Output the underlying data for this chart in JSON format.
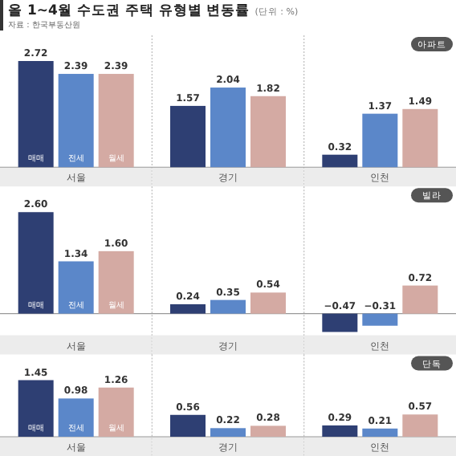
{
  "chart_data": [
    {
      "type": "bar",
      "title": "아파트",
      "annotations": [
        "올 1~4월 수도권 주택 유형별 변동률",
        "(단위 : %)",
        "자료 : 한국부동산원"
      ],
      "categories": [
        "서울",
        "경기",
        "인천"
      ],
      "series": [
        {
          "name": "매매",
          "color": "#2e3f73",
          "values": [
            2.72,
            1.57,
            0.32
          ],
          "value_labels": [
            "2.72",
            "1.57",
            "0.32"
          ]
        },
        {
          "name": "전세",
          "color": "#5b87c9",
          "values": [
            2.39,
            2.04,
            1.37
          ],
          "value_labels": [
            "2.39",
            "2.04",
            "1.37"
          ]
        },
        {
          "name": "월세",
          "color": "#d4aaa3",
          "values": [
            2.39,
            1.82,
            1.49
          ],
          "value_labels": [
            "2.39",
            "1.82",
            "1.49"
          ]
        }
      ]
    },
    {
      "type": "bar",
      "title": "빌라",
      "categories": [
        "서울",
        "경기",
        "인천"
      ],
      "series": [
        {
          "name": "매매",
          "color": "#2e3f73",
          "values": [
            2.6,
            0.24,
            -0.47
          ],
          "value_labels": [
            "2.60",
            "0.24",
            "−0.47"
          ]
        },
        {
          "name": "전세",
          "color": "#5b87c9",
          "values": [
            1.34,
            0.35,
            -0.31
          ],
          "value_labels": [
            "1.34",
            "0.35",
            "−0.31"
          ]
        },
        {
          "name": "월세",
          "color": "#d4aaa3",
          "values": [
            1.6,
            0.54,
            0.72
          ],
          "value_labels": [
            "1.60",
            "0.54",
            "0.72"
          ]
        }
      ]
    },
    {
      "type": "bar",
      "title": "단독",
      "categories": [
        "서울",
        "경기",
        "인천"
      ],
      "series": [
        {
          "name": "매매",
          "color": "#2e3f73",
          "values": [
            1.45,
            0.56,
            0.29
          ],
          "value_labels": [
            "1.45",
            "0.56",
            "0.29"
          ]
        },
        {
          "name": "전세",
          "color": "#5b87c9",
          "values": [
            0.98,
            0.22,
            0.21
          ],
          "value_labels": [
            "0.98",
            "0.22",
            "0.21"
          ]
        },
        {
          "name": "월세",
          "color": "#d4aaa3",
          "values": [
            1.26,
            0.28,
            0.57
          ],
          "value_labels": [
            "1.26",
            "0.28",
            "0.57"
          ]
        }
      ]
    }
  ]
}
